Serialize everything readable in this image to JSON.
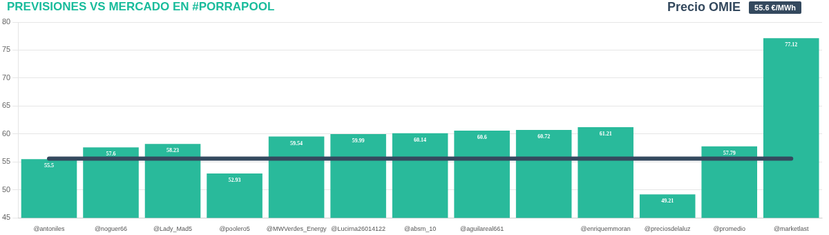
{
  "chart_data": {
    "type": "bar",
    "title": "PREVISIONES VS MERCADO EN #PORRAPOOL",
    "annotations": [
      "Precio OMIE",
      "55.6 €/MWh"
    ],
    "categories": [
      "@antoniles",
      "@noguer66",
      "@Lady_Mad5",
      "@poolero5",
      "@MWVerdes_Energy",
      "@Lucirna26014122",
      "@absm_10",
      "@aguilareal661",
      null,
      "@enriquemmoran",
      "@preciosdelaluz",
      "@promedio",
      "@marketlast"
    ],
    "values": [
      55.5,
      57.6,
      58.23,
      52.93,
      59.54,
      59.99,
      60.14,
      60.6,
      60.72,
      61.21,
      49.21,
      57.79,
      77.12
    ],
    "color": "#29ba9b",
    "ylim": [
      45,
      80
    ],
    "yticks": [
      45,
      50,
      55,
      60,
      65,
      70,
      75,
      80
    ],
    "grid": "y",
    "data_labels": true,
    "ref_lines": [
      {
        "axis": "y",
        "value": 55.6,
        "color": "#34495e"
      }
    ]
  }
}
